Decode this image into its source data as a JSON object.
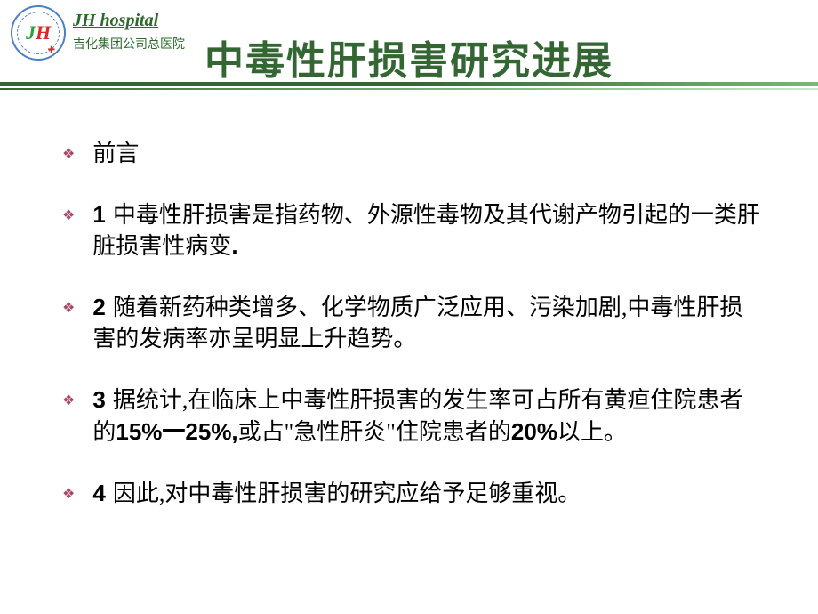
{
  "header": {
    "hospital_en": "JH hospital",
    "hospital_cn": "吉化集团公司总医院",
    "logo_j": "J",
    "logo_h": "H"
  },
  "title": "中毒性肝损害研究进展",
  "items": [
    {
      "num": "",
      "text_before": "前言",
      "bold": "",
      "text_after": ""
    },
    {
      "num": "1",
      "text_before": "中毒性肝损害是指药物、外源性毒物及其代谢产物引起的一类肝脏损害性病变",
      "bold": ".",
      "text_after": ""
    },
    {
      "num": "2",
      "text_before": "随着新药种类增多、化学物质广泛应用、污染加剧,中毒性肝损害的发病率亦呈明显上升趋势。",
      "bold": "",
      "text_after": ""
    },
    {
      "num": "3",
      "text_before": "据统计,在临床上中毒性肝损害的发生率可占所有黄疸住院患者的",
      "bold": "15%一25%,",
      "text_mid": "或占\"急性肝炎\"住院患者的",
      "bold2": "20%",
      "text_after": "以上。"
    },
    {
      "num": "4",
      "text_before": "因此,对中毒性肝损害的研究应给予足够重视。",
      "bold": "",
      "text_after": ""
    }
  ],
  "colors": {
    "title": "#336633",
    "bullet": "#a8486a",
    "text": "#000000",
    "logo_green": "#2a9f3e",
    "logo_red": "#d82a2a",
    "hospital_text": "#2a6a2a"
  }
}
